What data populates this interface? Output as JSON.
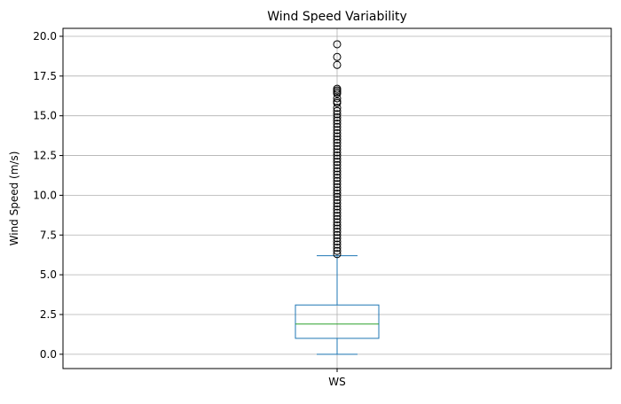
{
  "chart_data": {
    "type": "box",
    "title": "Wind Speed Variability",
    "xlabel": "",
    "ylabel": "Wind Speed (m/s)",
    "categories": [
      "WS"
    ],
    "ylim": [
      -0.9,
      20.5
    ],
    "yticks": [
      "0.0",
      "2.5",
      "5.0",
      "7.5",
      "10.0",
      "12.5",
      "15.0",
      "17.5",
      "20.0"
    ],
    "grid": true,
    "box": {
      "min": 0.0,
      "q1": 1.0,
      "median": 1.9,
      "q3": 3.1,
      "max": 6.2
    },
    "outliers": [
      19.5,
      18.7,
      18.2,
      16.7,
      16.6,
      16.5,
      16.4,
      16.1,
      15.9,
      15.8,
      15.5,
      15.3,
      15.1,
      14.9,
      14.7,
      14.5,
      14.3,
      14.1,
      13.9,
      13.7,
      13.5,
      13.3,
      13.1,
      12.9,
      12.7,
      12.5,
      12.3,
      12.1,
      11.9,
      11.7,
      11.5,
      11.3,
      11.1,
      10.9,
      10.7,
      10.5,
      10.3,
      10.1,
      9.9,
      9.7,
      9.5,
      9.3,
      9.1,
      8.9,
      8.7,
      8.5,
      8.3,
      8.1,
      7.9,
      7.7,
      7.5,
      7.3,
      7.1,
      6.9,
      6.7,
      6.5,
      6.3
    ],
    "colors": {
      "box": "#1f77b4",
      "median": "#2ca02c",
      "grid": "#b0b0b0",
      "outlier": "#000000"
    }
  }
}
